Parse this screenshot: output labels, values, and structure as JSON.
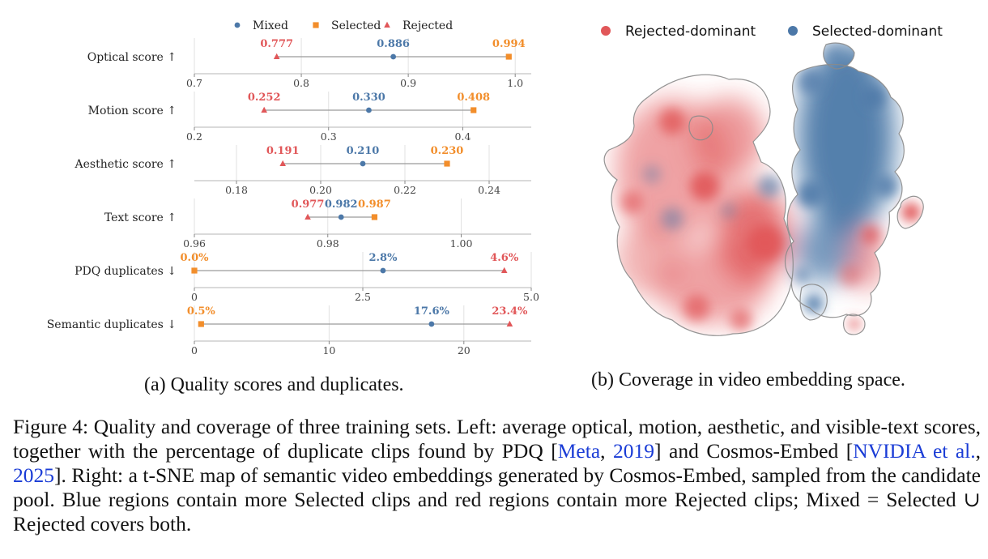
{
  "chart_data": [
    {
      "type": "dot-range",
      "legend": {
        "placement": "top",
        "entries": [
          {
            "name": "Mixed",
            "marker": "circle",
            "color": "#4c78a8"
          },
          {
            "name": "Selected",
            "marker": "square",
            "color": "#f28e2b"
          },
          {
            "name": "Rejected",
            "marker": "triangle",
            "color": "#e15759"
          }
        ]
      },
      "panels": [
        {
          "label": "Optical score ↑",
          "xlim": [
            0.7,
            1.015
          ],
          "ticks": [
            0.7,
            0.8,
            0.9,
            1.0
          ],
          "tick_labels": [
            "0.7",
            "0.8",
            "0.9",
            "1.0"
          ],
          "mixed": 0.886,
          "selected": 0.994,
          "rejected": 0.777,
          "mixed_label": "0.886",
          "selected_label": "0.994",
          "rejected_label": "0.777"
        },
        {
          "label": "Motion score ↑",
          "xlim": [
            0.2,
            0.451
          ],
          "ticks": [
            0.2,
            0.3,
            0.4
          ],
          "tick_labels": [
            "0.2",
            "0.3",
            "0.4"
          ],
          "mixed": 0.33,
          "selected": 0.408,
          "rejected": 0.252,
          "mixed_label": "0.330",
          "selected_label": "0.408",
          "rejected_label": "0.252"
        },
        {
          "label": "Aesthetic score ↑",
          "xlim": [
            0.17,
            0.25
          ],
          "ticks": [
            0.18,
            0.2,
            0.22,
            0.24
          ],
          "tick_labels": [
            "0.18",
            "0.20",
            "0.22",
            "0.24"
          ],
          "mixed": 0.21,
          "selected": 0.23,
          "rejected": 0.191,
          "mixed_label": "0.210",
          "selected_label": "0.230",
          "rejected_label": "0.191"
        },
        {
          "label": "Text score ↑",
          "xlim": [
            0.96,
            1.0105
          ],
          "ticks": [
            0.96,
            0.98,
            1.0
          ],
          "tick_labels": [
            "0.96",
            "0.98",
            "1.00"
          ],
          "mixed": 0.982,
          "selected": 0.987,
          "rejected": 0.977,
          "mixed_label": "0.982",
          "selected_label": "0.987",
          "rejected_label": "0.977"
        },
        {
          "label": "PDQ duplicates ↓",
          "xlim": [
            0.0,
            5.0
          ],
          "ticks": [
            0.0,
            2.5,
            5.0
          ],
          "tick_labels": [
            "0",
            "2.5",
            "5.0"
          ],
          "mixed": 2.8,
          "selected": 0.0,
          "rejected": 4.6,
          "mixed_label": "2.8%",
          "selected_label": "0.0%",
          "rejected_label": "4.6%"
        },
        {
          "label": "Semantic duplicates ↓",
          "xlim": [
            0,
            25
          ],
          "ticks": [
            0,
            10,
            20
          ],
          "tick_labels": [
            "0",
            "10",
            "20"
          ],
          "mixed": 17.6,
          "selected": 0.5,
          "rejected": 23.4,
          "mixed_label": "17.6%",
          "selected_label": "0.5%",
          "rejected_label": "23.4%"
        }
      ]
    },
    {
      "type": "density-map",
      "legend": {
        "placement": "top",
        "entries": [
          {
            "name": "Rejected-dominant",
            "color": "#e15759"
          },
          {
            "name": "Selected-dominant",
            "color": "#4c78a8"
          }
        ]
      }
    }
  ],
  "subcaptions": {
    "a": "(a) Quality scores and duplicates.",
    "b": "(b) Coverage in video embedding space."
  },
  "caption": {
    "part1": "Figure 4: Quality and coverage of three training sets. Left: average optical, motion, aesthetic, and visible-text scores, together with the percentage of duplicate clips found by PDQ [",
    "cite1_author": "Meta",
    "cite1_sep": ", ",
    "cite1_year": "2019",
    "part2": "] and Cosmos-Embed [",
    "cite2_author": "NVIDIA et al.",
    "cite2_sep": ", ",
    "cite2_year": "2025",
    "part3": "]. Right: a t-SNE map of semantic video embeddings generated by Cosmos-Embed, sampled from the candidate pool. Blue regions contain more Selected clips and red regions contain more Rejected clips; Mixed = Selected ∪ Rejected covers both."
  }
}
